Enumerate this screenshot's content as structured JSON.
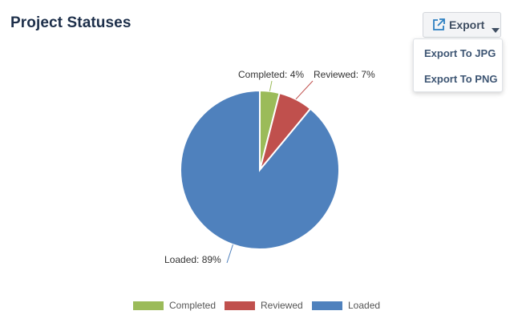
{
  "header": {
    "title": "Project Statuses"
  },
  "export": {
    "label": "Export",
    "icon": "external-link-icon",
    "menu": [
      "Export To JPG",
      "Export To PNG"
    ]
  },
  "chart_data": {
    "type": "pie",
    "slices": [
      {
        "name": "Completed",
        "value": 4,
        "label": "Completed: 4%",
        "color": "#9bbb59"
      },
      {
        "name": "Reviewed",
        "value": 7,
        "label": "Reviewed: 7%",
        "color": "#c0504d"
      },
      {
        "name": "Loaded",
        "value": 89,
        "label": "Loaded: 89%",
        "color": "#4f81bd"
      }
    ],
    "legend": {
      "placement": "bottom",
      "entries": [
        "Completed",
        "Reviewed",
        "Loaded"
      ]
    }
  }
}
